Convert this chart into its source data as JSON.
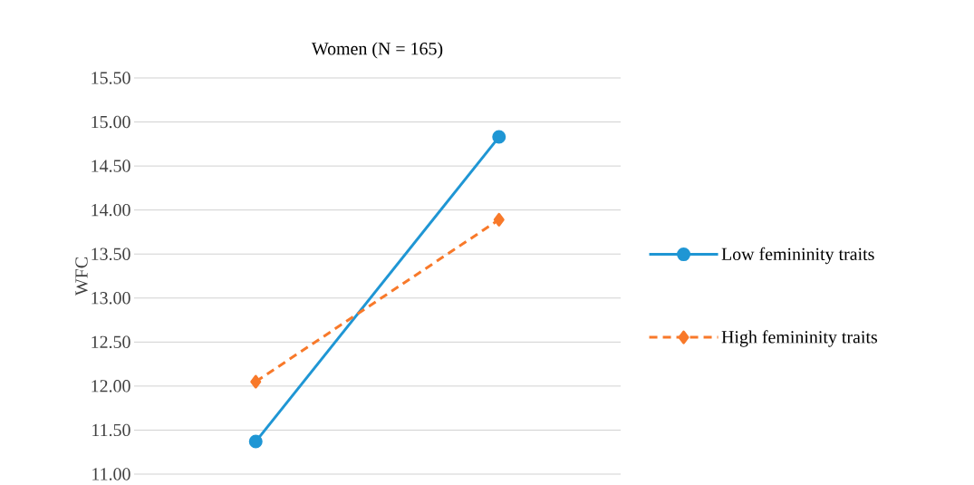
{
  "chart_data": {
    "type": "line",
    "title": "Women (N = 165)",
    "ylabel": "WFC",
    "categories": [
      null,
      null
    ],
    "series": [
      {
        "name": "Low femininity traits",
        "color": "#1f96d4",
        "values": [
          11.37,
          14.83
        ],
        "marker": "circle",
        "line_style": "solid"
      },
      {
        "name": "High femininity traits",
        "color": "#f8792a",
        "values": [
          12.05,
          13.89
        ],
        "marker": "diamond",
        "line_style": "dashed"
      }
    ],
    "ylim": [
      11.0,
      15.5
    ],
    "yticks": [
      {
        "value": 11.0,
        "label": "11.00"
      },
      {
        "value": 11.5,
        "label": "11.50"
      },
      {
        "value": 12.0,
        "label": "12.00"
      },
      {
        "value": 12.5,
        "label": "12.50"
      },
      {
        "value": 13.0,
        "label": "13.00"
      },
      {
        "value": 13.5,
        "label": "13.50"
      },
      {
        "value": 14.0,
        "label": "14.00"
      },
      {
        "value": 14.5,
        "label": "14.50"
      },
      {
        "value": 15.0,
        "label": "15.00"
      },
      {
        "value": 15.5,
        "label": "15.50"
      }
    ],
    "grid": "y",
    "legend": "right"
  }
}
